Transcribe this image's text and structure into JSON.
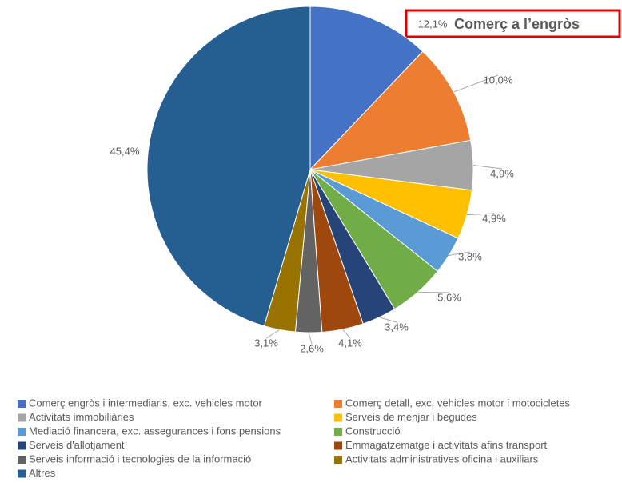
{
  "chart_data": {
    "type": "pie",
    "categories": [
      "Comerç engròs i intermediaris, exc. vehicles motor",
      "Comerç detall, exc. vehicles motor i motocicletes",
      "Activitats immobiliàries",
      "Serveis de menjar i begudes",
      "Mediació financera, exc. assegurances i fons pensions",
      "Construcció",
      "Serveis d'allotjament",
      "Emmagatzematge i activitats afins transport",
      "Serveis informació i tecnologies de la informació",
      "Activitats administratives oficina i auxiliars",
      "Altres"
    ],
    "values": [
      12.1,
      10.0,
      4.9,
      4.9,
      3.8,
      5.6,
      3.4,
      4.1,
      2.6,
      3.1,
      45.4
    ],
    "value_labels": [
      "12,1%",
      "10,0%",
      "4,9%",
      "4,9%",
      "3,8%",
      "5,6%",
      "3,4%",
      "4,1%",
      "2,6%",
      "3,1%",
      "45,4%"
    ],
    "colors": [
      "#4472c4",
      "#ed7d31",
      "#a5a5a5",
      "#ffc000",
      "#5b9bd5",
      "#70ad47",
      "#264478",
      "#9e480e",
      "#636363",
      "#997300",
      "#255e91"
    ],
    "annotation": "Comerç a l’engròs"
  }
}
